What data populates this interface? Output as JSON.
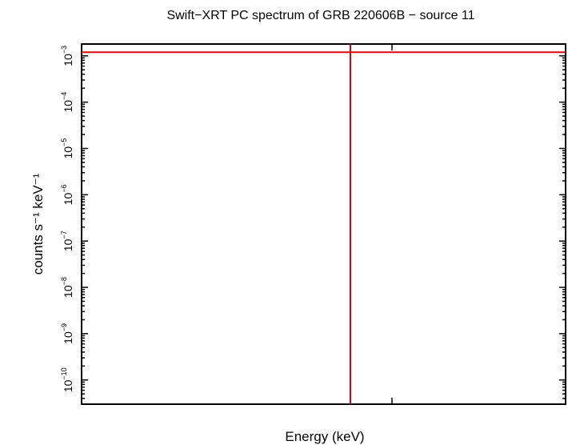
{
  "chart_data": {
    "type": "line",
    "title": "Swift−XRT PC spectrum of GRB 220606B − source 11",
    "xlabel": "Energy (keV)",
    "ylabel": "counts s⁻¹ keV⁻¹",
    "yscale": "log",
    "ylim": [
      3e-11,
      0.0018
    ],
    "y_ticks": [
      {
        "value": 0.001,
        "base": "10",
        "exp": "−3"
      },
      {
        "value": 0.0001,
        "base": "10",
        "exp": "−4"
      },
      {
        "value": 1e-05,
        "base": "10",
        "exp": "−5"
      },
      {
        "value": 1e-06,
        "base": "10",
        "exp": "−6"
      },
      {
        "value": 1e-07,
        "base": "10",
        "exp": "−7"
      },
      {
        "value": 1e-08,
        "base": "10",
        "exp": "−8"
      },
      {
        "value": 1e-09,
        "base": "10",
        "exp": "−9"
      },
      {
        "value": 1e-10,
        "base": "10",
        "exp": "−10"
      }
    ],
    "x_ticks_unlabeled": 1,
    "grid": false,
    "series": [
      {
        "kind": "horizontal",
        "y": 0.0012,
        "color": "#dd0000"
      },
      {
        "kind": "vertical",
        "color": "#dd0000"
      }
    ]
  }
}
